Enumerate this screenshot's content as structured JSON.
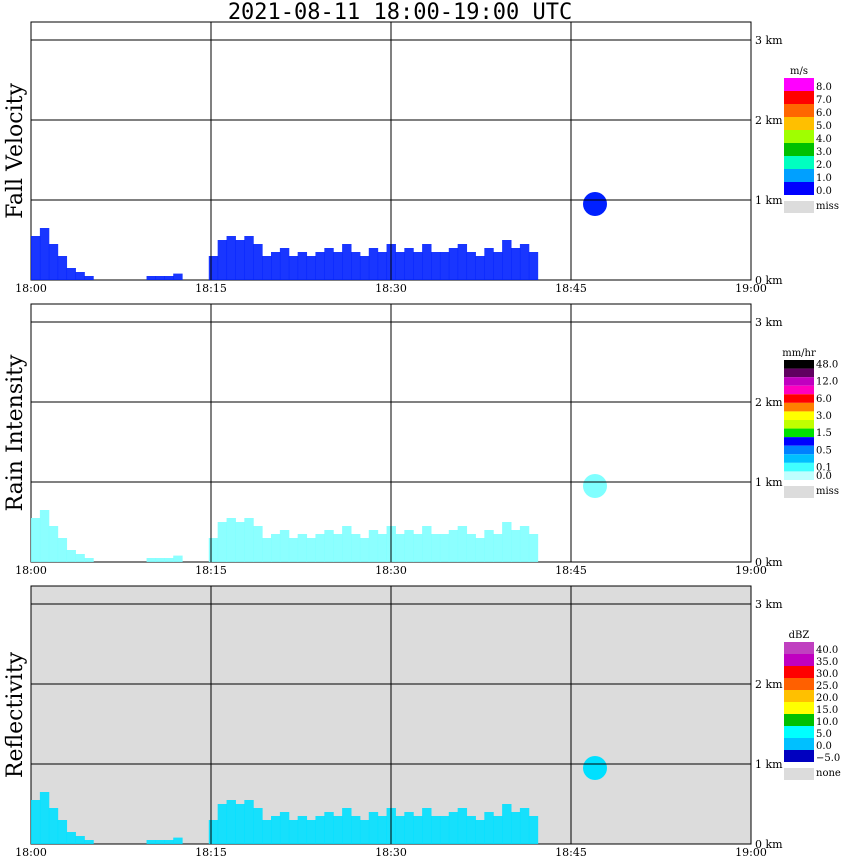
{
  "title": "2021-08-11   18:00-19:00 UTC",
  "chart_data": [
    {
      "type": "heatmap",
      "panel": "Fall Velocity",
      "ylabel": "Fall Velocity",
      "unit": "m/s",
      "xticks": [
        "18:00",
        "18:15",
        "18:30",
        "18:45",
        "19:00"
      ],
      "yticks": [
        "0 km",
        "1 km",
        "2 km",
        "3 km"
      ],
      "ylim": [
        0,
        3.0
      ],
      "background": "#ffffff",
      "colorbar": [
        {
          "label": "8.0",
          "color": "#ff00ff"
        },
        {
          "label": "7.0",
          "color": "#ff0000"
        },
        {
          "label": "6.0",
          "color": "#ff6600"
        },
        {
          "label": "5.0",
          "color": "#ffbf00"
        },
        {
          "label": "4.0",
          "color": "#a0ff00"
        },
        {
          "label": "3.0",
          "color": "#00c000"
        },
        {
          "label": "2.0",
          "color": "#00ffc0"
        },
        {
          "label": "1.0",
          "color": "#00a0ff"
        },
        {
          "label": "0.0",
          "color": "#0000ff"
        }
      ],
      "missing": {
        "label": "miss",
        "color": "#dcdcdc"
      },
      "dominant_color": "#0020ff",
      "echo_profile_km": [
        0.55,
        0.65,
        0.45,
        0.3,
        0.15,
        0.1,
        0.05,
        0,
        0,
        0,
        0,
        0,
        0,
        0.05,
        0.05,
        0.05,
        0.08,
        0,
        0,
        0,
        0.3,
        0.5,
        0.55,
        0.5,
        0.55,
        0.45,
        0.3,
        0.35,
        0.4,
        0.3,
        0.35,
        0.3,
        0.35,
        0.4,
        0.35,
        0.45,
        0.35,
        0.3,
        0.4,
        0.35,
        0.45,
        0.35,
        0.4,
        0.35,
        0.45,
        0.35,
        0.35,
        0.4,
        0.45,
        0.35,
        0.3,
        0.4,
        0.35,
        0.5,
        0.4,
        0.45,
        0.35,
        0,
        0,
        0,
        0,
        0,
        0,
        0,
        0,
        0,
        0,
        0,
        0,
        0,
        0,
        0,
        0,
        0,
        0,
        0,
        0,
        0,
        0,
        0,
        0
      ]
    },
    {
      "type": "heatmap",
      "panel": "Rain Intensity",
      "ylabel": "Rain Intensity",
      "unit": "mm/hr",
      "xticks": [
        "18:00",
        "18:15",
        "18:30",
        "18:45",
        "19:00"
      ],
      "yticks": [
        "0 km",
        "1 km",
        "2 km",
        "3 km"
      ],
      "ylim": [
        0,
        3.0
      ],
      "background": "#ffffff",
      "colorbar": [
        {
          "label": "48.0",
          "color": "#000000"
        },
        {
          "label": "",
          "color": "#600060"
        },
        {
          "label": "12.0",
          "color": "#c000c0"
        },
        {
          "label": "",
          "color": "#ff00c0"
        },
        {
          "label": "6.0",
          "color": "#ff0000"
        },
        {
          "label": "",
          "color": "#ff8000"
        },
        {
          "label": "3.0",
          "color": "#ffff00"
        },
        {
          "label": "",
          "color": "#c0ff00"
        },
        {
          "label": "1.5",
          "color": "#00e000"
        },
        {
          "label": "",
          "color": "#0000ff"
        },
        {
          "label": "0.5",
          "color": "#0080ff"
        },
        {
          "label": "",
          "color": "#00c0ff"
        },
        {
          "label": "0.1",
          "color": "#40ffff"
        },
        {
          "label": "0.0",
          "color": "#c0ffff"
        }
      ],
      "missing": {
        "label": "miss",
        "color": "#dcdcdc"
      },
      "dominant_color": "#80ffff",
      "echo_profile_km": [
        0.55,
        0.65,
        0.45,
        0.3,
        0.15,
        0.1,
        0.05,
        0,
        0,
        0,
        0,
        0,
        0,
        0.05,
        0.05,
        0.05,
        0.08,
        0,
        0,
        0,
        0.3,
        0.5,
        0.55,
        0.5,
        0.55,
        0.45,
        0.3,
        0.35,
        0.4,
        0.3,
        0.35,
        0.3,
        0.35,
        0.4,
        0.35,
        0.45,
        0.35,
        0.3,
        0.4,
        0.35,
        0.45,
        0.35,
        0.4,
        0.35,
        0.45,
        0.35,
        0.35,
        0.4,
        0.45,
        0.35,
        0.3,
        0.4,
        0.35,
        0.5,
        0.4,
        0.45,
        0.35,
        0,
        0,
        0,
        0,
        0,
        0,
        0,
        0,
        0,
        0,
        0,
        0,
        0,
        0,
        0,
        0,
        0,
        0,
        0,
        0,
        0,
        0,
        0,
        0
      ]
    },
    {
      "type": "heatmap",
      "panel": "Reflectivity",
      "ylabel": "Reflectivity",
      "unit": "dBZ",
      "xticks": [
        "18:00",
        "18:15",
        "18:30",
        "18:45",
        "19:00"
      ],
      "yticks": [
        "0 km",
        "1 km",
        "2 km",
        "3 km"
      ],
      "ylim": [
        0,
        3.0
      ],
      "background": "#dcdcdc",
      "colorbar": [
        {
          "label": "40.0",
          "color": "#c040c0"
        },
        {
          "label": "35.0",
          "color": "#c000c0"
        },
        {
          "label": "30.0",
          "color": "#ff0000"
        },
        {
          "label": "25.0",
          "color": "#ff6000"
        },
        {
          "label": "20.0",
          "color": "#ffc000"
        },
        {
          "label": "15.0",
          "color": "#ffff00"
        },
        {
          "label": "10.0",
          "color": "#00c000"
        },
        {
          "label": "5.0",
          "color": "#00ffff"
        },
        {
          "label": "0.0",
          "color": "#00c0ff"
        },
        {
          "label": "−5.0",
          "color": "#0000c0"
        }
      ],
      "missing": {
        "label": "none",
        "color": "#dcdcdc"
      },
      "dominant_color": "#00e0ff",
      "echo_profile_km": [
        0.55,
        0.65,
        0.45,
        0.3,
        0.15,
        0.1,
        0.05,
        0,
        0,
        0,
        0,
        0,
        0,
        0.05,
        0.05,
        0.05,
        0.08,
        0,
        0,
        0,
        0.3,
        0.5,
        0.55,
        0.5,
        0.55,
        0.45,
        0.3,
        0.35,
        0.4,
        0.3,
        0.35,
        0.3,
        0.35,
        0.4,
        0.35,
        0.45,
        0.35,
        0.3,
        0.4,
        0.35,
        0.45,
        0.35,
        0.4,
        0.35,
        0.45,
        0.35,
        0.35,
        0.4,
        0.45,
        0.35,
        0.3,
        0.4,
        0.35,
        0.5,
        0.4,
        0.45,
        0.35,
        0,
        0,
        0,
        0,
        0,
        0,
        0,
        0,
        0,
        0,
        0,
        0,
        0,
        0,
        0,
        0,
        0,
        0,
        0,
        0,
        0,
        0,
        0,
        0
      ]
    }
  ]
}
